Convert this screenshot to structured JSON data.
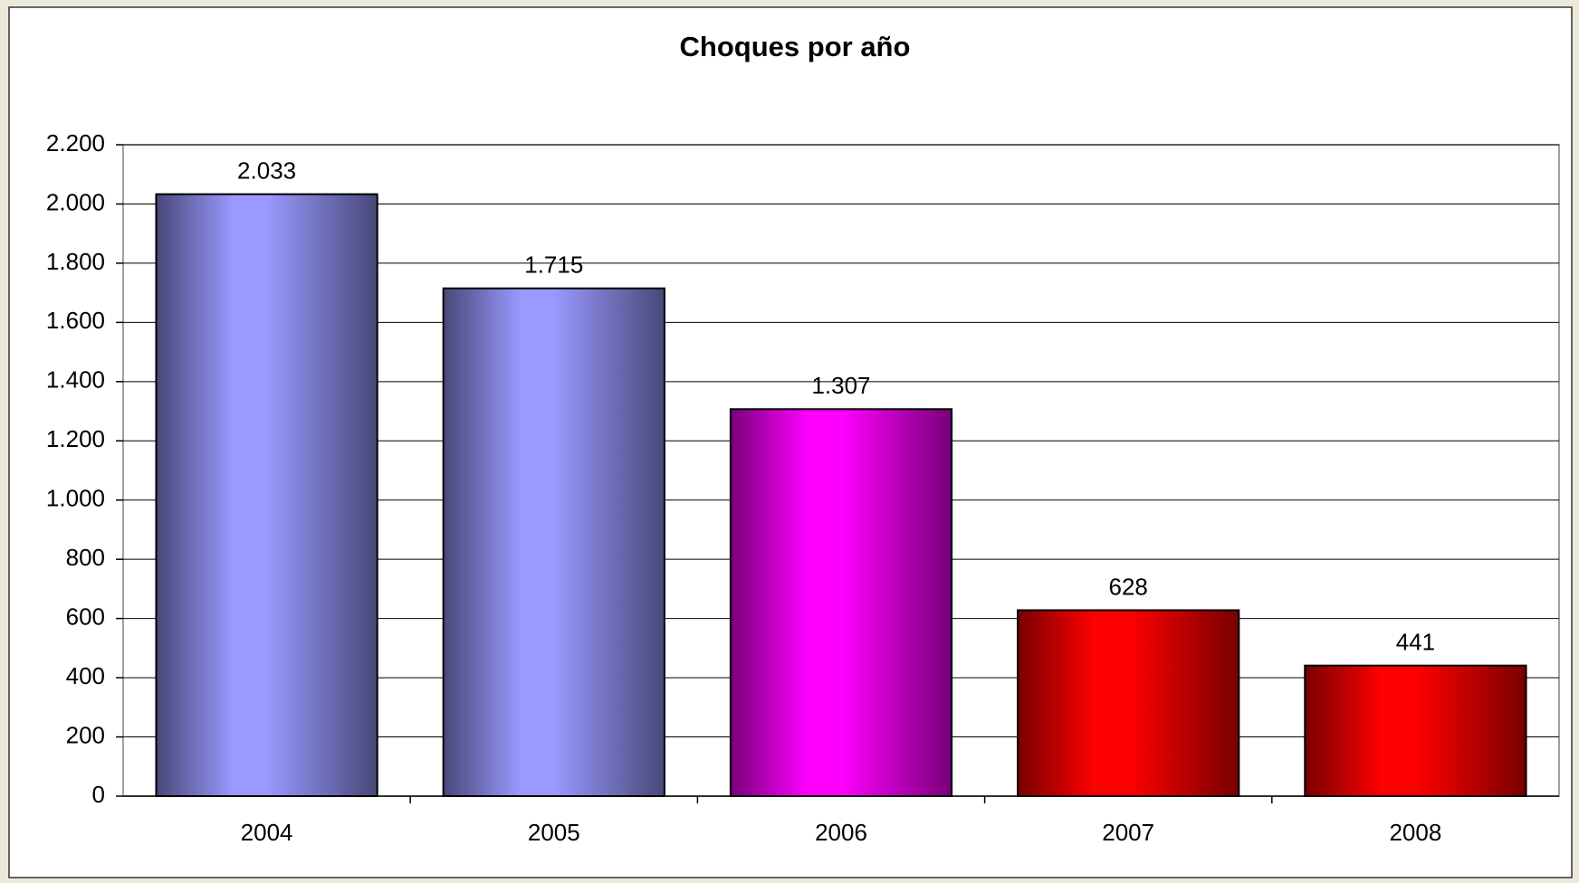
{
  "chart_data": {
    "type": "bar",
    "title": "Choques por año",
    "categories": [
      "2004",
      "2005",
      "2006",
      "2007",
      "2008"
    ],
    "values": [
      2033,
      1715,
      1307,
      628,
      441
    ],
    "value_labels": [
      "2.033",
      "1.715",
      "1.307",
      "628",
      "441"
    ],
    "colors": [
      "#9999ff",
      "#9999ff",
      "#ff00ff",
      "#ff0000",
      "#ff0000"
    ],
    "ylim": [
      0,
      2200
    ],
    "yticks": [
      0,
      200,
      400,
      600,
      800,
      {
        "value": 1000,
        "label": "1.000"
      },
      {
        "value": 1200,
        "label": "1.200"
      },
      {
        "value": 1400,
        "label": "1.400"
      },
      {
        "value": 1600,
        "label": "1.600"
      },
      {
        "value": 1800,
        "label": "1.800"
      },
      {
        "value": 2000,
        "label": "2.000"
      },
      {
        "value": 2200,
        "label": "2.200"
      }
    ],
    "grid": true
  }
}
